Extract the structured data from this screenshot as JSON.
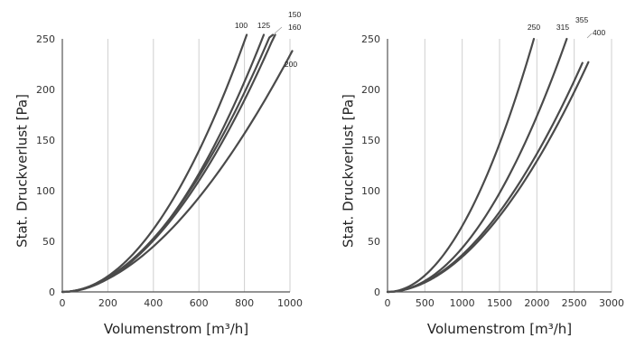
{
  "colors": {
    "curve": "#4a4a4a",
    "grid": "#cfcfcf",
    "axis": "#555555",
    "text": "#222222"
  },
  "chart_data": [
    {
      "type": "line",
      "title": "",
      "xlabel": "Volumenstrom [m³/h]",
      "ylabel": "Stat. Druckverlust [Pa]",
      "xlim": [
        0,
        1000
      ],
      "ylim": [
        0,
        250
      ],
      "xticks": [
        0,
        200,
        400,
        600,
        800,
        1000
      ],
      "yticks": [
        0,
        50,
        100,
        150,
        200,
        250
      ],
      "grid": true,
      "series": [
        {
          "name": "100",
          "exponent": 2.0,
          "x": [
            0,
            100,
            200,
            300,
            400,
            500,
            600,
            700,
            810
          ],
          "y": [
            0,
            3.9,
            15.5,
            34.9,
            62.0,
            96.9,
            139.5,
            189.9,
            254
          ]
        },
        {
          "name": "125",
          "exponent": 2.0,
          "x": [
            0,
            100,
            200,
            300,
            400,
            500,
            600,
            700,
            800,
            885
          ],
          "y": [
            0,
            3.2,
            13.0,
            29.2,
            51.9,
            81.1,
            116.8,
            159.0,
            207.7,
            254
          ]
        },
        {
          "name": "150",
          "exponent": 1.9,
          "x": [
            0,
            100,
            200,
            300,
            400,
            500,
            600,
            700,
            800,
            900,
            925
          ],
          "y": [
            0,
            3.8,
            13.9,
            30.0,
            51.9,
            79.6,
            113.1,
            152.0,
            196.6,
            246.5,
            259.5
          ]
        },
        {
          "name": "160",
          "exponent": 1.9,
          "x": [
            0,
            100,
            200,
            300,
            400,
            500,
            600,
            700,
            800,
            900,
            935
          ],
          "y": [
            0,
            3.6,
            13.3,
            28.8,
            49.8,
            76.4,
            108.6,
            146.0,
            188.8,
            236.7,
            254.9
          ]
        },
        {
          "name": "200",
          "exponent": 1.8,
          "x": [
            0,
            100,
            200,
            300,
            400,
            500,
            600,
            700,
            800,
            900,
            1010
          ],
          "y": [
            0,
            3.6,
            12.6,
            26.3,
            44.4,
            66.7,
            92.8,
            122.7,
            156.2,
            193.1,
            238.0
          ]
        }
      ],
      "curve_labels": [
        "100",
        "125",
        "150",
        "160",
        "200"
      ]
    },
    {
      "type": "line",
      "title": "",
      "xlabel": "Volumenstrom [m³/h]",
      "ylabel": "Stat. Druckverlust [Pa]",
      "xlim": [
        0,
        3000
      ],
      "ylim": [
        0,
        250
      ],
      "xticks": [
        0,
        500,
        1000,
        1500,
        2000,
        2500,
        3000
      ],
      "yticks": [
        0,
        50,
        100,
        150,
        200,
        250
      ],
      "grid": true,
      "series": [
        {
          "name": "250",
          "exponent": 2.0,
          "x": [
            0,
            250,
            500,
            750,
            1000,
            1250,
            1500,
            1750,
            1960
          ],
          "y": [
            0,
            4.1,
            16.3,
            36.6,
            65.0,
            101.6,
            146.3,
            199.1,
            250
          ]
        },
        {
          "name": "315",
          "exponent": 2.0,
          "x": [
            0,
            250,
            500,
            750,
            1000,
            1250,
            1500,
            1750,
            2000,
            2250,
            2400
          ],
          "y": [
            0,
            2.7,
            10.9,
            24.4,
            43.4,
            67.8,
            97.7,
            132.9,
            173.6,
            219.7,
            250
          ]
        },
        {
          "name": "355",
          "exponent": 1.9,
          "x": [
            0,
            250,
            500,
            750,
            1000,
            1250,
            1500,
            1750,
            2000,
            2250,
            2500,
            2610
          ],
          "y": [
            0,
            2.6,
            9.6,
            20.7,
            35.8,
            54.9,
            78.0,
            104.9,
            135.6,
            170.0,
            208.2,
            226.2
          ]
        },
        {
          "name": "400",
          "exponent": 1.9,
          "x": [
            0,
            250,
            500,
            750,
            1000,
            1250,
            1500,
            1750,
            2000,
            2250,
            2500,
            2690
          ],
          "y": [
            0,
            2.4,
            9.1,
            19.6,
            33.9,
            52.0,
            73.9,
            99.4,
            128.5,
            161.1,
            197.3,
            227.0
          ]
        }
      ],
      "curve_labels": [
        "250",
        "315",
        "355",
        "400"
      ]
    }
  ]
}
